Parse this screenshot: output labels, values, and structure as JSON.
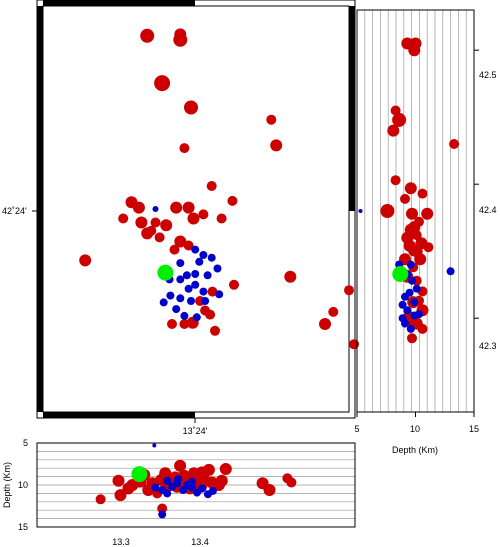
{
  "chart_data": [
    {
      "type": "scatter",
      "panel": "map",
      "title": "",
      "xlabel": "",
      "ylabel": "",
      "xlim": [
        13.18,
        13.55
      ],
      "ylim": [
        42.23,
        42.53
      ],
      "tick_labels": {
        "x": [
          "13˚24'"
        ],
        "y": [
          "42˚24'"
        ]
      },
      "colors": {
        "deep": "#cc0000",
        "shallow": "#0000cc",
        "mainshock": "#00ee00"
      },
      "series": [
        {
          "color": "red",
          "points": [
            [
              13.306,
              42.508,
              7
            ],
            [
              13.346,
              42.505,
              7
            ],
            [
              13.346,
              42.509,
              6
            ],
            [
              13.324,
              42.473,
              8
            ],
            [
              13.359,
              42.455,
              7
            ],
            [
              13.456,
              42.446,
              5
            ],
            [
              13.462,
              42.427,
              6
            ],
            [
              13.351,
              42.425,
              5
            ],
            [
              13.384,
              42.397,
              5
            ],
            [
              13.409,
              42.386,
              5
            ],
            [
              13.287,
              42.385,
              6
            ],
            [
              13.296,
              42.381,
              6
            ],
            [
              13.341,
              42.381,
              6
            ],
            [
              13.356,
              42.381,
              6
            ],
            [
              13.374,
              42.376,
              5
            ],
            [
              13.277,
              42.373,
              5
            ],
            [
              13.362,
              42.373,
              6
            ],
            [
              13.396,
              42.373,
              5
            ],
            [
              13.299,
              42.37,
              6
            ],
            [
              13.316,
              42.37,
              5
            ],
            [
              13.329,
              42.368,
              6
            ],
            [
              13.321,
              42.359,
              5
            ],
            [
              13.306,
              42.362,
              6
            ],
            [
              13.311,
              42.364,
              5
            ],
            [
              13.346,
              42.356,
              6
            ],
            [
              13.356,
              42.353,
              5
            ],
            [
              13.339,
              42.35,
              5
            ],
            [
              13.231,
              42.342,
              6
            ],
            [
              13.479,
              42.33,
              6
            ],
            [
              13.55,
              42.32,
              5
            ],
            [
              13.411,
              42.324,
              5
            ],
            [
              13.385,
              42.319,
              5
            ],
            [
              13.37,
              42.312,
              5
            ],
            [
              13.382,
              42.302,
              5
            ],
            [
              13.361,
              42.296,
              6
            ],
            [
              13.336,
              42.295,
              5
            ],
            [
              13.351,
              42.295,
              5
            ],
            [
              13.376,
              42.305,
              5
            ],
            [
              13.521,
              42.295,
              6
            ],
            [
              13.531,
              42.304,
              5
            ],
            [
              13.556,
              42.28,
              5
            ],
            [
              13.388,
              42.29,
              5
            ]
          ]
        },
        {
          "color": "blue",
          "points": [
            [
              13.316,
              42.38,
              3
            ],
            [
              13.364,
              42.35,
              4
            ],
            [
              13.374,
              42.346,
              4
            ],
            [
              13.384,
              42.344,
              4
            ],
            [
              13.369,
              42.341,
              4
            ],
            [
              13.391,
              42.336,
              4
            ],
            [
              13.379,
              42.331,
              4
            ],
            [
              13.364,
              42.332,
              4
            ],
            [
              13.354,
              42.331,
              4
            ],
            [
              13.346,
              42.328,
              4
            ],
            [
              13.356,
              42.321,
              4
            ],
            [
              13.364,
              42.324,
              4
            ],
            [
              13.374,
              42.319,
              4
            ],
            [
              13.334,
              42.316,
              4
            ],
            [
              13.346,
              42.314,
              4
            ],
            [
              13.359,
              42.312,
              4
            ],
            [
              13.376,
              42.312,
              4
            ],
            [
              13.326,
              42.311,
              4
            ],
            [
              13.341,
              42.306,
              4
            ],
            [
              13.351,
              42.301,
              4
            ],
            [
              13.366,
              42.3,
              4
            ],
            [
              13.393,
              42.317,
              4
            ],
            [
              13.346,
              42.34,
              4
            ],
            [
              13.333,
              42.328,
              4
            ]
          ]
        },
        {
          "color": "green",
          "points": [
            [
              13.328,
              42.333,
              8
            ]
          ]
        }
      ]
    },
    {
      "type": "scatter",
      "panel": "right-section",
      "title": "",
      "xlabel": "Depth (Km)",
      "ylabel": "",
      "xlim": [
        5,
        15
      ],
      "ylim": [
        42.23,
        42.53
      ],
      "x_tick_labels": [
        "5",
        "10",
        "15"
      ],
      "y_tick_labels": [
        "42.3",
        "42.4",
        "42.5"
      ],
      "series": [
        {
          "color": "red",
          "points": [
            [
              9.3,
              42.505,
              6
            ],
            [
              10.0,
              42.505,
              6
            ],
            [
              9.9,
              42.5,
              6
            ],
            [
              8.3,
              42.455,
              5
            ],
            [
              8.6,
              42.448,
              7
            ],
            [
              8.1,
              42.44,
              6
            ],
            [
              13.3,
              42.43,
              5
            ],
            [
              8.3,
              42.403,
              5
            ],
            [
              9.6,
              42.397,
              6
            ],
            [
              10.6,
              42.393,
              5
            ],
            [
              9.1,
              42.389,
              5
            ],
            [
              7.6,
              42.38,
              7
            ],
            [
              11.0,
              42.378,
              6
            ],
            [
              9.7,
              42.378,
              6
            ],
            [
              10.3,
              42.372,
              5
            ],
            [
              9.6,
              42.366,
              6
            ],
            [
              9.9,
              42.368,
              6
            ],
            [
              9.3,
              42.36,
              6
            ],
            [
              10.1,
              42.362,
              5
            ],
            [
              9.5,
              42.354,
              6
            ],
            [
              10.5,
              42.356,
              6
            ],
            [
              10.1,
              42.35,
              6
            ],
            [
              9.8,
              42.35,
              5
            ],
            [
              11.1,
              42.353,
              5
            ],
            [
              9.1,
              42.344,
              6
            ],
            [
              10.4,
              42.344,
              6
            ],
            [
              9.8,
              42.338,
              5
            ],
            [
              9.3,
              42.331,
              6
            ],
            [
              10.1,
              42.328,
              5
            ],
            [
              10.6,
              42.32,
              5
            ],
            [
              9.8,
              42.312,
              6
            ],
            [
              10.3,
              42.313,
              5
            ],
            [
              10.6,
              42.306,
              6
            ],
            [
              9.4,
              42.302,
              5
            ],
            [
              10.1,
              42.296,
              6
            ],
            [
              10.6,
              42.292,
              5
            ],
            [
              9.6,
              42.298,
              5
            ],
            [
              9.7,
              42.285,
              5
            ]
          ]
        },
        {
          "color": "blue",
          "points": [
            [
              5.3,
              42.38,
              2
            ],
            [
              8.6,
              42.34,
              4
            ],
            [
              9.6,
              42.34,
              4
            ],
            [
              9.3,
              42.333,
              4
            ],
            [
              9.7,
              42.328,
              4
            ],
            [
              10.1,
              42.322,
              4
            ],
            [
              9.5,
              42.319,
              4
            ],
            [
              9.1,
              42.316,
              4
            ],
            [
              9.9,
              42.312,
              4
            ],
            [
              8.9,
              42.31,
              4
            ],
            [
              9.3,
              42.306,
              4
            ],
            [
              8.9,
              42.3,
              4
            ],
            [
              9.9,
              42.302,
              4
            ],
            [
              13.0,
              42.335,
              4
            ],
            [
              9.1,
              42.296,
              4
            ],
            [
              10.3,
              42.303,
              4
            ],
            [
              9.6,
              42.292,
              4
            ]
          ]
        },
        {
          "color": "green",
          "points": [
            [
              8.7,
              42.333,
              8
            ]
          ]
        }
      ]
    },
    {
      "type": "scatter",
      "panel": "bottom-section",
      "title": "",
      "xlabel": "",
      "ylabel": "Depth (Km)",
      "xlim": [
        13.23,
        13.55
      ],
      "ylim": [
        5,
        15
      ],
      "x_tick_labels": [
        "13.3",
        "13.4"
      ],
      "y_tick_labels": [
        "5",
        "10",
        "15"
      ],
      "series": [
        {
          "color": "red",
          "points": [
            [
              13.294,
              11.7,
              5
            ],
            [
              13.312,
              9.5,
              6
            ],
            [
              13.322,
              10.4,
              6
            ],
            [
              13.314,
              11.2,
              6
            ],
            [
              13.326,
              10.0,
              6
            ],
            [
              13.334,
              9.6,
              6
            ],
            [
              13.338,
              8.8,
              6
            ],
            [
              13.342,
              10.6,
              6
            ],
            [
              13.346,
              9.8,
              6
            ],
            [
              13.355,
              9.4,
              6
            ],
            [
              13.359,
              8.6,
              6
            ],
            [
              13.362,
              10.1,
              6
            ],
            [
              13.366,
              9.5,
              6
            ],
            [
              13.371,
              10.2,
              6
            ],
            [
              13.374,
              7.7,
              6
            ],
            [
              13.378,
              8.9,
              6
            ],
            [
              13.381,
              9.6,
              6
            ],
            [
              13.384,
              10.4,
              6
            ],
            [
              13.388,
              8.6,
              6
            ],
            [
              13.391,
              9.3,
              6
            ],
            [
              13.395,
              10.2,
              6
            ],
            [
              13.398,
              9.3,
              6
            ],
            [
              13.403,
              8.2,
              6
            ],
            [
              13.406,
              9.7,
              6
            ],
            [
              13.413,
              10.0,
              6
            ],
            [
              13.416,
              9.5,
              6
            ],
            [
              13.42,
              8.1,
              6
            ],
            [
              13.457,
              9.8,
              6
            ],
            [
              13.464,
              10.6,
              6
            ],
            [
              13.482,
              9.2,
              5
            ],
            [
              13.486,
              9.7,
              5
            ],
            [
              13.356,
              12.8,
              5
            ],
            [
              13.351,
              11.0,
              5
            ],
            [
              13.396,
              8.5,
              6
            ],
            [
              13.369,
              9.1,
              6
            ]
          ]
        },
        {
          "color": "blue",
          "points": [
            [
              13.348,
              5.3,
              2
            ],
            [
              13.356,
              13.5,
              4
            ],
            [
              13.349,
              10.3,
              4
            ],
            [
              13.356,
              10.6,
              4
            ],
            [
              13.361,
              11.0,
              4
            ],
            [
              13.366,
              10.2,
              4
            ],
            [
              13.371,
              9.8,
              4
            ],
            [
              13.377,
              10.6,
              4
            ],
            [
              13.381,
              10.0,
              4
            ],
            [
              13.386,
              10.3,
              4
            ],
            [
              13.391,
              10.9,
              4
            ],
            [
              13.396,
              10.4,
              4
            ],
            [
              13.402,
              11.1,
              4
            ],
            [
              13.407,
              10.7,
              4
            ],
            [
              13.361,
              9.5,
              4
            ],
            [
              13.372,
              9.3,
              4
            ],
            [
              13.386,
              9.6,
              4
            ]
          ]
        },
        {
          "color": "green",
          "points": [
            [
              13.333,
              8.7,
              8
            ]
          ]
        }
      ]
    }
  ]
}
